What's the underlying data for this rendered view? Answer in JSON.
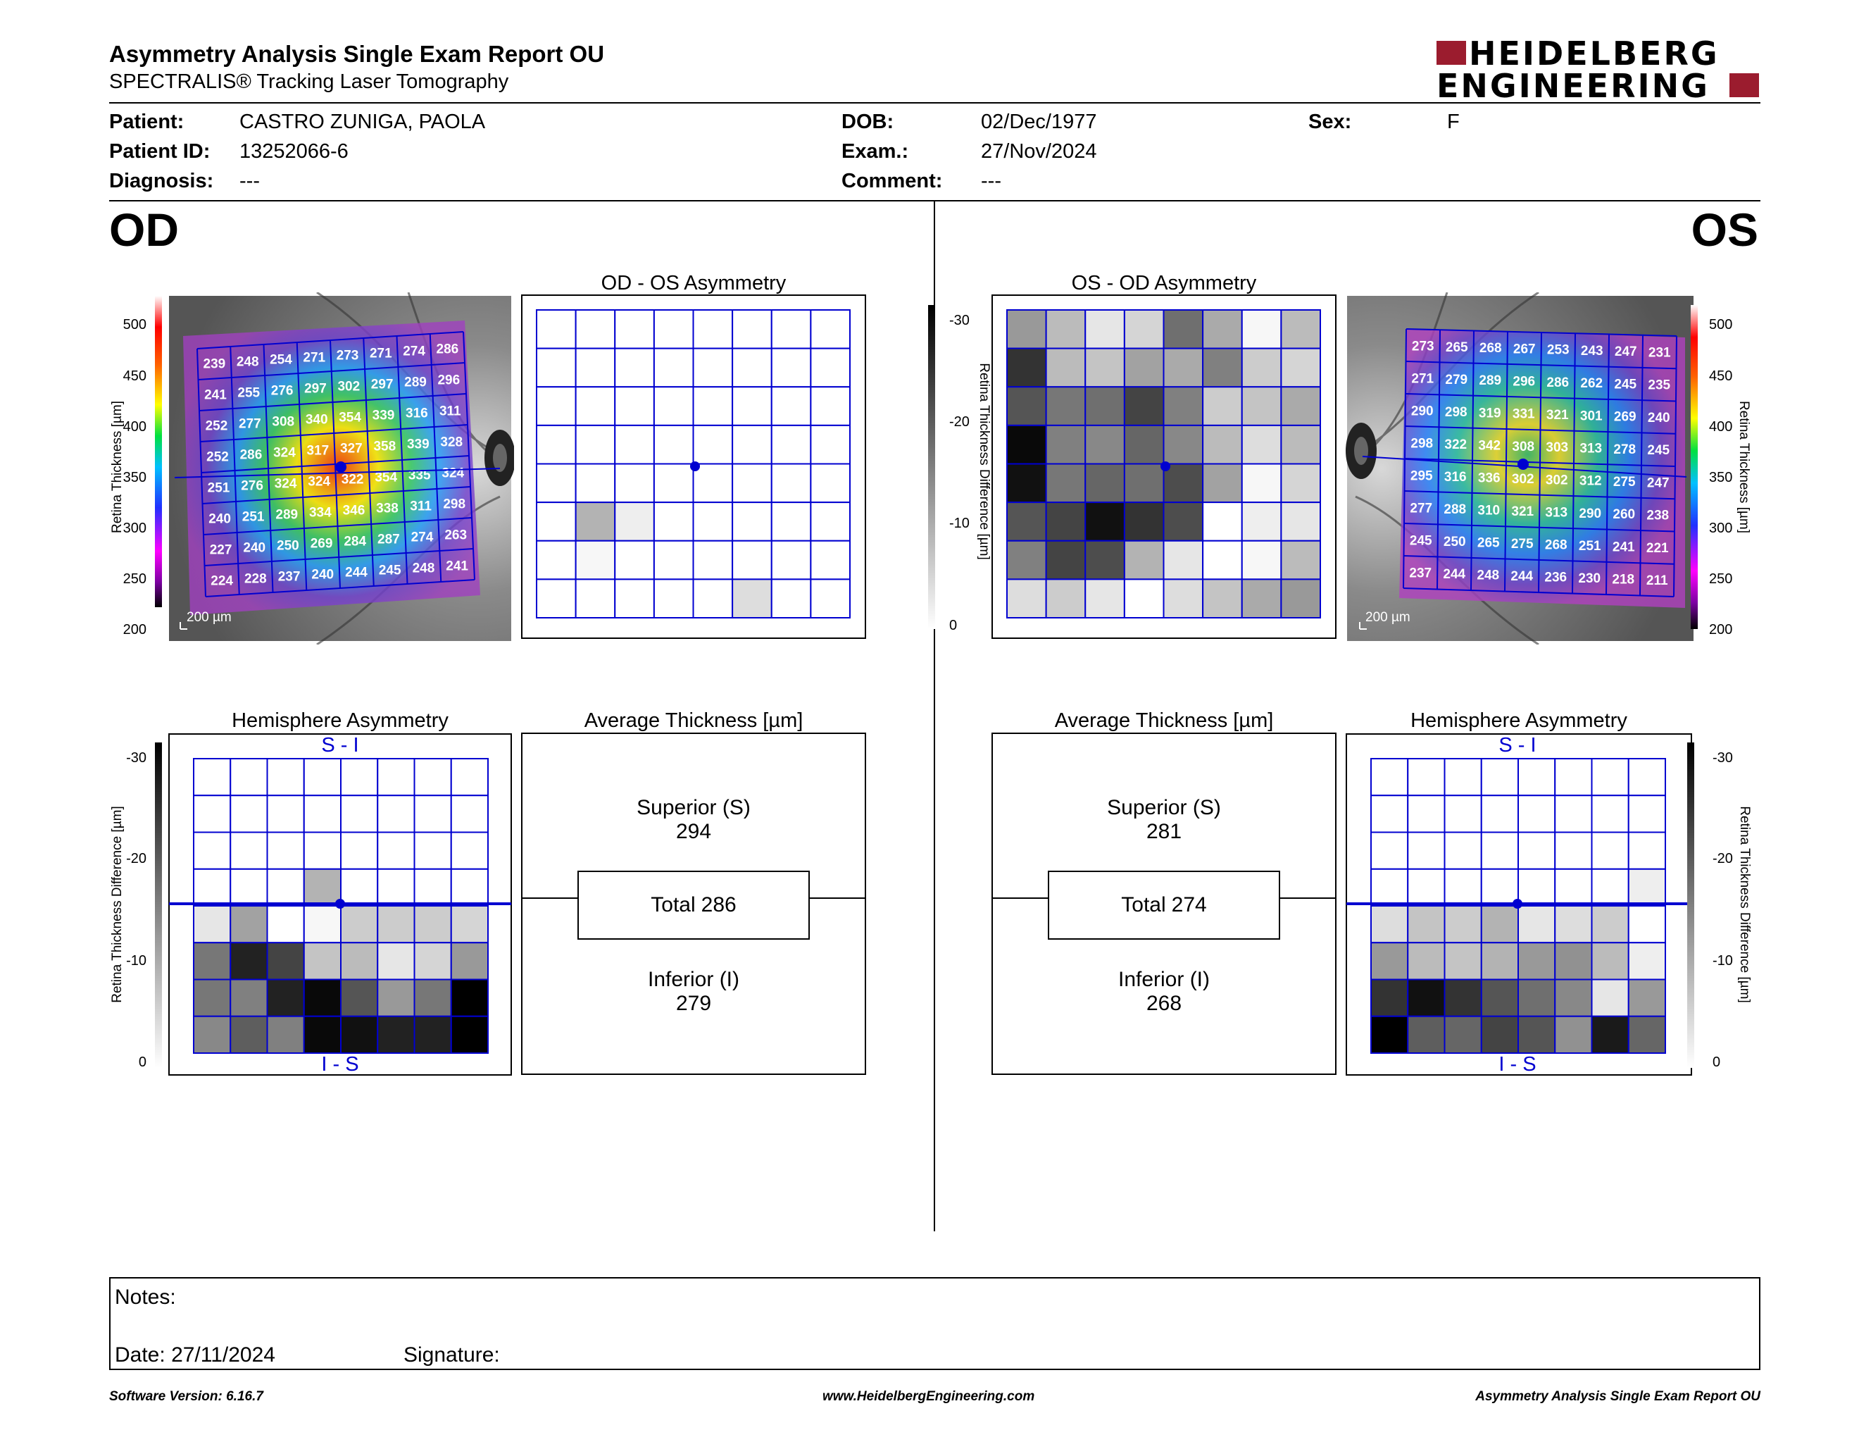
{
  "header": {
    "title": "Asymmetry Analysis Single Exam Report OU",
    "subtitle": "SPECTRALIS® Tracking Laser Tomography",
    "logo_line1": "HEIDELBERG",
    "logo_line2": "ENGINEERING"
  },
  "patient": {
    "name_label": "Patient:",
    "name": "CASTRO ZUNIGA, PAOLA",
    "id_label": "Patient ID:",
    "id": "13252066-6",
    "diagnosis_label": "Diagnosis:",
    "diagnosis": "---",
    "dob_label": "DOB:",
    "dob": "02/Dec/1977",
    "exam_label": "Exam.:",
    "exam": "27/Nov/2024",
    "comment_label": "Comment:",
    "comment": "---",
    "sex_label": "Sex:",
    "sex": "F"
  },
  "od": {
    "eye_label": "OD",
    "thickness_axis_label": "Retina Thickness [µm]",
    "thickness_ticks": [
      "500",
      "450",
      "400",
      "350",
      "300",
      "250",
      "200"
    ],
    "scale_bar": "200 µm",
    "thickness_grid": [
      [
        239,
        248,
        254,
        271,
        273,
        271,
        274,
        286
      ],
      [
        241,
        255,
        276,
        297,
        302,
        297,
        289,
        296
      ],
      [
        252,
        277,
        308,
        340,
        354,
        339,
        316,
        311
      ],
      [
        252,
        286,
        324,
        317,
        327,
        358,
        339,
        328
      ],
      [
        251,
        276,
        324,
        324,
        322,
        354,
        335,
        324
      ],
      [
        240,
        251,
        289,
        334,
        346,
        338,
        311,
        298
      ],
      [
        227,
        240,
        250,
        269,
        284,
        287,
        274,
        263
      ],
      [
        224,
        228,
        237,
        240,
        244,
        245,
        248,
        241
      ]
    ],
    "asymmetry_title": "OD - OS Asymmetry",
    "asymmetry_grid": [
      [
        0,
        0,
        0,
        0,
        0,
        0,
        0,
        0
      ],
      [
        0,
        0,
        0,
        0,
        0,
        0,
        0,
        0
      ],
      [
        0,
        0,
        0,
        0,
        0,
        0,
        0,
        0
      ],
      [
        0,
        0,
        0,
        0,
        0,
        0,
        0,
        0
      ],
      [
        0,
        0,
        0,
        0,
        0,
        0,
        0,
        0
      ],
      [
        0,
        9,
        2,
        0,
        0,
        0,
        0,
        0
      ],
      [
        0,
        1,
        0,
        0,
        0,
        0,
        0,
        0
      ],
      [
        0,
        0,
        0,
        0,
        0,
        4,
        0,
        0
      ]
    ],
    "hemi_title": "Hemisphere Asymmetry",
    "hemi_top_label": "S - I",
    "hemi_bottom_label": "I - S",
    "diff_axis_label": "Retina Thickness Difference [µm]",
    "diff_ticks": [
      "-30",
      "-20",
      "-10",
      "0"
    ],
    "hemi_grid": [
      [
        0,
        0,
        0,
        0,
        0,
        0,
        0,
        0
      ],
      [
        0,
        0,
        0,
        0,
        0,
        0,
        0,
        0
      ],
      [
        0,
        0,
        0,
        0,
        0,
        0,
        0,
        0
      ],
      [
        0,
        0,
        0,
        9,
        0,
        0,
        0,
        0
      ],
      [
        3,
        11,
        0,
        1,
        6,
        6,
        6,
        5
      ],
      [
        16,
        26,
        22,
        7,
        8,
        3,
        5,
        12
      ],
      [
        16,
        15,
        26,
        29,
        20,
        12,
        16,
        30
      ],
      [
        14,
        19,
        15,
        29,
        28,
        26,
        26,
        30
      ]
    ],
    "avg_title": "Average Thickness [µm]",
    "superior_label": "Superior (S)",
    "superior": "294",
    "total_label": "Total",
    "total": "286",
    "inferior_label": "Inferior (I)",
    "inferior": "279"
  },
  "os": {
    "eye_label": "OS",
    "thickness_axis_label": "Retina Thickness [µm]",
    "thickness_ticks": [
      "500",
      "450",
      "400",
      "350",
      "300",
      "250",
      "200"
    ],
    "scale_bar": "200 µm",
    "thickness_grid": [
      [
        273,
        265,
        268,
        267,
        253,
        243,
        247,
        231
      ],
      [
        271,
        279,
        289,
        296,
        286,
        262,
        245,
        235
      ],
      [
        290,
        298,
        319,
        331,
        321,
        301,
        269,
        240
      ],
      [
        298,
        322,
        342,
        308,
        303,
        313,
        278,
        245
      ],
      [
        295,
        316,
        336,
        302,
        302,
        312,
        275,
        247
      ],
      [
        277,
        288,
        310,
        321,
        313,
        290,
        260,
        238
      ],
      [
        245,
        250,
        265,
        275,
        268,
        251,
        241,
        221
      ],
      [
        237,
        244,
        248,
        244,
        236,
        230,
        218,
        211
      ]
    ],
    "asymmetry_title": "OS - OD Asymmetry",
    "diff_axis_label": "Retina Thickness Difference [µm]",
    "diff_ticks": [
      "-30",
      "-20",
      "-10",
      "0"
    ],
    "asymmetry_grid": [
      [
        12,
        8,
        3,
        5,
        17,
        10,
        1,
        8
      ],
      [
        24,
        8,
        7,
        11,
        10,
        15,
        6,
        5
      ],
      [
        20,
        16,
        17,
        22,
        15,
        6,
        7,
        10
      ],
      [
        29,
        15,
        14,
        18,
        14,
        8,
        4,
        8
      ],
      [
        28,
        16,
        18,
        17,
        21,
        11,
        1,
        5
      ],
      [
        20,
        22,
        28,
        24,
        21,
        0,
        2,
        3
      ],
      [
        15,
        22,
        21,
        9,
        3,
        0,
        1,
        8
      ],
      [
        4,
        6,
        3,
        0,
        4,
        7,
        10,
        12
      ]
    ],
    "hemi_title": "Hemisphere Asymmetry",
    "hemi_top_label": "S - I",
    "hemi_bottom_label": "I - S",
    "hemi_grid": [
      [
        0,
        0,
        0,
        0,
        0,
        0,
        0,
        0
      ],
      [
        0,
        0,
        0,
        0,
        0,
        0,
        0,
        0
      ],
      [
        0,
        0,
        0,
        0,
        0,
        0,
        0,
        0
      ],
      [
        0,
        0,
        0,
        0,
        0,
        0,
        0,
        2
      ],
      [
        4,
        7,
        6,
        9,
        3,
        4,
        6,
        0
      ],
      [
        12,
        8,
        7,
        9,
        12,
        13,
        8,
        2
      ],
      [
        24,
        28,
        24,
        20,
        17,
        14,
        3,
        12
      ],
      [
        30,
        19,
        18,
        22,
        20,
        13,
        27,
        18
      ]
    ],
    "avg_title": "Average Thickness [µm]",
    "superior_label": "Superior (S)",
    "superior": "281",
    "total_label": "Total",
    "total": "274",
    "inferior_label": "Inferior (I)",
    "inferior": "268"
  },
  "notes": {
    "notes_label": "Notes:",
    "date_label": "Date:",
    "date": "27/11/2024",
    "signature_label": "Signature:"
  },
  "footer": {
    "software": "Software Version: 6.16.7",
    "website": "www.HeidelbergEngineering.com",
    "report": "Asymmetry Analysis Single Exam Report OU"
  },
  "colors": {
    "grid_blue": "#0000d0",
    "logo_red": "#9b1c2e"
  }
}
